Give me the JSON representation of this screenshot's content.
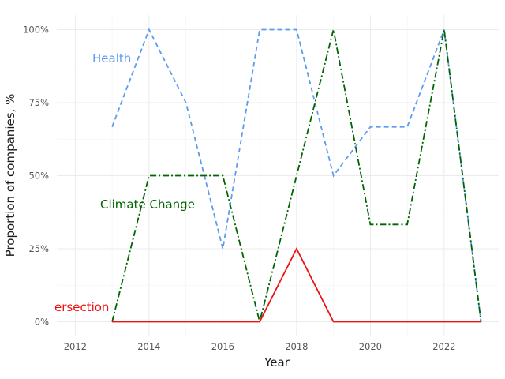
{
  "chart_data": {
    "type": "line",
    "title": "",
    "xlabel": "Year",
    "ylabel": "Proportion of companies, %",
    "x_ticks": [
      2012,
      2014,
      2016,
      2018,
      2020,
      2022
    ],
    "y_ticks": [
      "0%",
      "25%",
      "50%",
      "75%",
      "100%"
    ],
    "xlim": [
      2011.5,
      2023.5
    ],
    "ylim": [
      -0.05,
      1.05
    ],
    "grid": true,
    "legend": "none (direct labels)",
    "series": [
      {
        "name": "Health",
        "label_text": "Health",
        "color": "#5b9bf0",
        "dash": "dashed",
        "x": [
          2013,
          2014,
          2015,
          2016,
          2017,
          2018,
          2019,
          2020,
          2021,
          2022,
          2023
        ],
        "y": [
          0.667,
          1.0,
          0.75,
          0.25,
          1.0,
          1.0,
          0.5,
          0.667,
          0.667,
          1.0,
          0.0
        ]
      },
      {
        "name": "Climate Change",
        "label_text": "Climate Change",
        "color": "#006400",
        "dash": "dashdot",
        "x": [
          2013,
          2014,
          2015,
          2016,
          2017,
          2018,
          2019,
          2020,
          2021,
          2022,
          2023
        ],
        "y": [
          0.0,
          0.5,
          0.5,
          0.5,
          0.0,
          0.5,
          1.0,
          0.333,
          0.333,
          1.0,
          0.0
        ]
      },
      {
        "name": "Intersection",
        "label_text": "ersection",
        "color": "#ee1111",
        "dash": "solid",
        "x": [
          2013,
          2014,
          2015,
          2016,
          2017,
          2018,
          2019,
          2020,
          2021,
          2022,
          2023
        ],
        "y": [
          0.0,
          0.0,
          0.0,
          0.0,
          0.0,
          0.25,
          0.0,
          0.0,
          0.0,
          0.0,
          0.0
        ]
      }
    ]
  }
}
